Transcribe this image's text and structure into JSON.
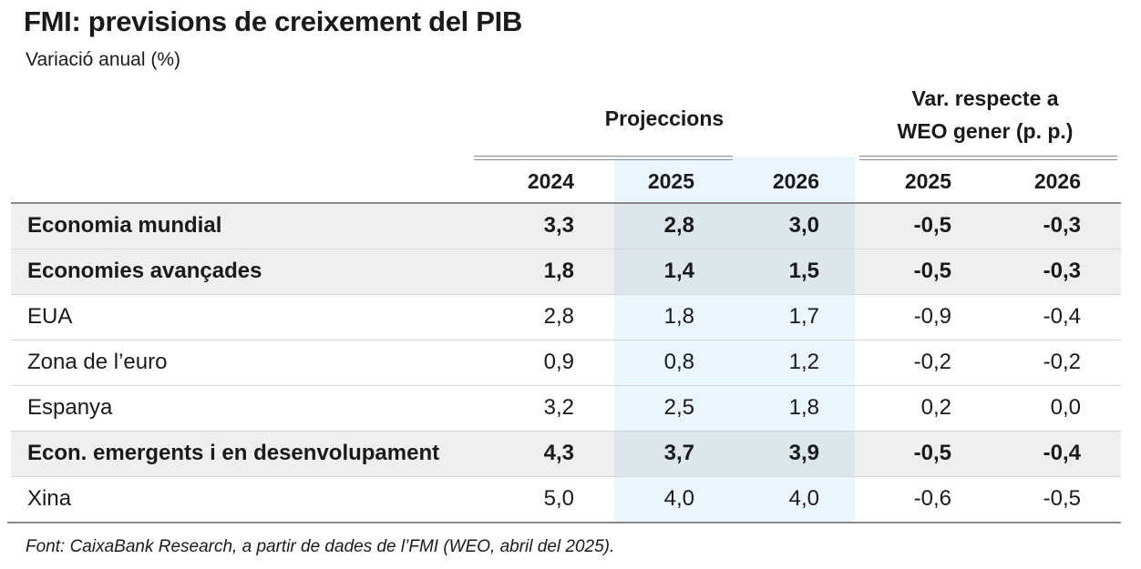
{
  "title": "FMI: previsions de creixement del PIB",
  "subtitle": "Variació anual (%)",
  "groups": {
    "projections": "Projeccions",
    "variation_line1": "Var. respecte a",
    "variation_line2": "WEO gener (p. p.)"
  },
  "columns": [
    "2024",
    "2025",
    "2026",
    "2025",
    "2026"
  ],
  "rows": [
    {
      "label": "Economia mundial",
      "bold": true,
      "values": [
        "3,3",
        "2,8",
        "3,0",
        "-0,5",
        "-0,3"
      ]
    },
    {
      "label": "Economies avançades",
      "bold": true,
      "values": [
        "1,8",
        "1,4",
        "1,5",
        "-0,5",
        "-0,3"
      ]
    },
    {
      "label": "EUA",
      "bold": false,
      "values": [
        "2,8",
        "1,8",
        "1,7",
        "-0,9",
        "-0,4"
      ]
    },
    {
      "label": "Zona de l’euro",
      "bold": false,
      "values": [
        "0,9",
        "0,8",
        "1,2",
        "-0,2",
        "-0,2"
      ]
    },
    {
      "label": "Espanya",
      "bold": false,
      "values": [
        "3,2",
        "2,5",
        "1,8",
        "0,2",
        "0,0"
      ]
    },
    {
      "label": "Econ. emergents i en desenvolupament",
      "bold": true,
      "values": [
        "4,3",
        "3,7",
        "3,9",
        "-0,5",
        "-0,4"
      ]
    },
    {
      "label": "Xina",
      "bold": false,
      "values": [
        "5,0",
        "4,0",
        "4,0",
        "-0,6",
        "-0,5"
      ]
    }
  ],
  "source": "Font: CaixaBank Research, a partir de dades de l’FMI (WEO, abril del 2025)."
}
